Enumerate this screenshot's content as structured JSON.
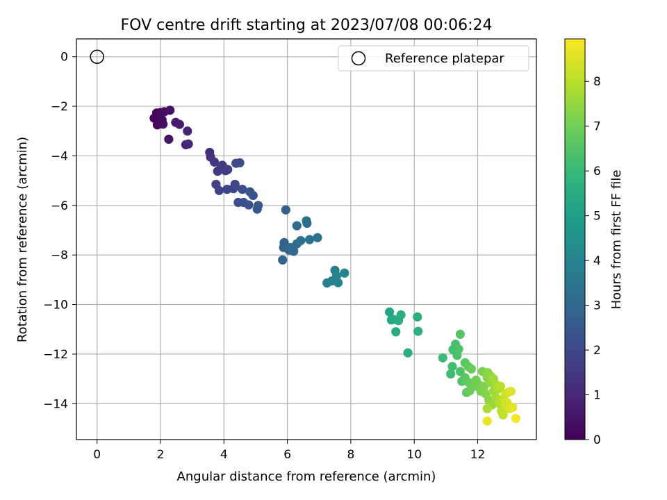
{
  "chart_data": {
    "type": "scatter",
    "title": "FOV centre drift starting at 2023/07/08 00:06:24",
    "xlabel": "Angular distance from reference (arcmin)",
    "ylabel": "Rotation from reference (arcmin)",
    "xlim": [
      -0.65,
      13.85
    ],
    "ylim": [
      -15.45,
      0.72
    ],
    "xticks": [
      0,
      2,
      4,
      6,
      8,
      10,
      12
    ],
    "yticks": [
      0,
      -2,
      -4,
      -6,
      -8,
      -10,
      -12,
      -14
    ],
    "grid": true,
    "legend": {
      "placement": "top-right",
      "entries": [
        "Reference platepar"
      ]
    },
    "reference_point": {
      "x": 0,
      "y": 0
    },
    "colorbar": {
      "label": "Hours from first FF file",
      "range": [
        0,
        8.95
      ],
      "ticks": [
        0,
        1,
        2,
        3,
        4,
        5,
        6,
        7,
        8
      ],
      "colormap": "viridis",
      "stops": [
        "#440154",
        "#482878",
        "#3e4989",
        "#31688e",
        "#26828e",
        "#1f9e89",
        "#35b779",
        "#6ece58",
        "#b5de2b",
        "#fde725"
      ]
    },
    "series": [
      {
        "points": [
          [
            1.8,
            -2.48,
            0.05
          ],
          [
            1.88,
            -2.27,
            0.1
          ],
          [
            1.9,
            -2.75,
            0.15
          ],
          [
            2.0,
            -2.25,
            0.2
          ],
          [
            2.05,
            -2.55,
            0.25
          ],
          [
            2.08,
            -2.72,
            0.3
          ],
          [
            2.12,
            -2.22,
            0.35
          ],
          [
            2.3,
            -2.16,
            0.4
          ],
          [
            2.26,
            -3.33,
            0.5
          ],
          [
            2.48,
            -2.65,
            0.6
          ],
          [
            2.6,
            -2.73,
            0.7
          ],
          [
            2.8,
            -3.55,
            0.8
          ],
          [
            2.85,
            -3.0,
            0.9
          ],
          [
            2.88,
            -3.52,
            1.0
          ],
          [
            3.55,
            -3.86,
            1.2
          ],
          [
            3.58,
            -4.05,
            1.3
          ],
          [
            3.7,
            -4.25,
            1.4
          ],
          [
            3.8,
            -4.62,
            1.5
          ],
          [
            3.9,
            -4.5,
            1.55
          ],
          [
            3.95,
            -4.38,
            1.6
          ],
          [
            4.05,
            -4.6,
            1.65
          ],
          [
            4.12,
            -4.55,
            1.7
          ],
          [
            3.75,
            -5.15,
            1.75
          ],
          [
            3.85,
            -5.4,
            1.8
          ],
          [
            4.1,
            -5.35,
            1.85
          ],
          [
            4.3,
            -5.32,
            1.9
          ],
          [
            4.35,
            -5.15,
            1.95
          ],
          [
            4.38,
            -4.3,
            2.0
          ],
          [
            4.5,
            -4.28,
            2.05
          ],
          [
            4.58,
            -5.35,
            2.1
          ],
          [
            4.45,
            -5.88,
            2.15
          ],
          [
            4.62,
            -5.88,
            2.2
          ],
          [
            4.78,
            -5.98,
            2.25
          ],
          [
            4.82,
            -5.45,
            2.3
          ],
          [
            4.92,
            -5.6,
            2.35
          ],
          [
            5.05,
            -6.15,
            2.4
          ],
          [
            5.08,
            -6.0,
            2.45
          ],
          [
            5.95,
            -6.18,
            2.7
          ],
          [
            5.9,
            -7.5,
            2.8
          ],
          [
            5.88,
            -7.7,
            2.85
          ],
          [
            5.85,
            -8.2,
            2.9
          ],
          [
            6.05,
            -7.8,
            2.95
          ],
          [
            6.2,
            -7.85,
            3.0
          ],
          [
            6.1,
            -7.7,
            3.05
          ],
          [
            6.3,
            -6.82,
            3.1
          ],
          [
            6.3,
            -7.55,
            3.15
          ],
          [
            6.42,
            -7.42,
            3.2
          ],
          [
            6.6,
            -6.62,
            3.25
          ],
          [
            6.62,
            -6.72,
            3.3
          ],
          [
            6.7,
            -7.38,
            3.35
          ],
          [
            6.95,
            -7.3,
            3.4
          ],
          [
            7.25,
            -9.13,
            3.8
          ],
          [
            7.4,
            -9.05,
            3.9
          ],
          [
            7.5,
            -8.62,
            3.95
          ],
          [
            7.55,
            -8.85,
            4.0
          ],
          [
            7.6,
            -9.12,
            4.05
          ],
          [
            7.8,
            -8.73,
            4.1
          ],
          [
            9.22,
            -10.3,
            5.3
          ],
          [
            9.28,
            -10.62,
            5.35
          ],
          [
            9.35,
            -10.6,
            5.4
          ],
          [
            9.42,
            -11.1,
            5.45
          ],
          [
            9.5,
            -10.65,
            5.5
          ],
          [
            9.58,
            -10.42,
            5.55
          ],
          [
            9.8,
            -11.95,
            5.6
          ],
          [
            10.1,
            -10.5,
            5.65
          ],
          [
            10.12,
            -11.08,
            5.7
          ],
          [
            10.9,
            -12.15,
            6.1
          ],
          [
            11.15,
            -12.8,
            6.15
          ],
          [
            11.2,
            -12.5,
            6.2
          ],
          [
            11.22,
            -11.82,
            6.25
          ],
          [
            11.3,
            -11.6,
            6.3
          ],
          [
            11.35,
            -12.05,
            6.35
          ],
          [
            11.4,
            -11.8,
            6.4
          ],
          [
            11.45,
            -12.7,
            6.45
          ],
          [
            11.5,
            -13.1,
            6.5
          ],
          [
            11.45,
            -11.2,
            6.55
          ],
          [
            11.6,
            -12.95,
            6.6
          ],
          [
            11.6,
            -12.35,
            6.65
          ],
          [
            11.65,
            -13.55,
            6.7
          ],
          [
            11.7,
            -12.5,
            6.75
          ],
          [
            11.72,
            -13.15,
            6.8
          ],
          [
            11.75,
            -13.48,
            6.85
          ],
          [
            11.8,
            -12.6,
            6.9
          ],
          [
            11.9,
            -13.3,
            6.95
          ],
          [
            11.95,
            -13.05,
            7.0
          ],
          [
            12.05,
            -13.25,
            7.05
          ],
          [
            12.1,
            -13.5,
            7.1
          ],
          [
            12.15,
            -12.7,
            7.15
          ],
          [
            12.2,
            -13.3,
            7.2
          ],
          [
            12.25,
            -13.6,
            7.25
          ],
          [
            12.3,
            -12.95,
            7.3
          ],
          [
            12.32,
            -12.75,
            7.35
          ],
          [
            12.35,
            -13.85,
            7.4
          ],
          [
            12.4,
            -13.15,
            7.45
          ],
          [
            12.42,
            -12.9,
            7.5
          ],
          [
            12.45,
            -14.05,
            7.55
          ],
          [
            12.5,
            -13.5,
            7.6
          ],
          [
            12.5,
            -13.0,
            7.65
          ],
          [
            12.55,
            -13.2,
            7.7
          ],
          [
            12.58,
            -13.75,
            7.75
          ],
          [
            12.3,
            -14.2,
            7.8
          ],
          [
            12.65,
            -13.4,
            7.85
          ],
          [
            12.68,
            -14.0,
            7.9
          ],
          [
            12.7,
            -13.85,
            7.95
          ],
          [
            12.72,
            -13.3,
            8.0
          ],
          [
            12.75,
            -14.3,
            8.05
          ],
          [
            12.8,
            -14.45,
            8.1
          ],
          [
            12.82,
            -13.9,
            8.15
          ],
          [
            12.85,
            -13.95,
            8.2
          ],
          [
            12.88,
            -13.6,
            8.25
          ],
          [
            12.9,
            -14.1,
            8.3
          ],
          [
            12.92,
            -13.95,
            8.35
          ],
          [
            12.95,
            -13.55,
            8.4
          ],
          [
            13.0,
            -14.2,
            8.45
          ],
          [
            13.05,
            -13.5,
            8.5
          ],
          [
            13.1,
            -14.15,
            8.6
          ],
          [
            12.3,
            -14.7,
            8.7
          ],
          [
            13.2,
            -14.6,
            8.8
          ]
        ]
      }
    ]
  }
}
